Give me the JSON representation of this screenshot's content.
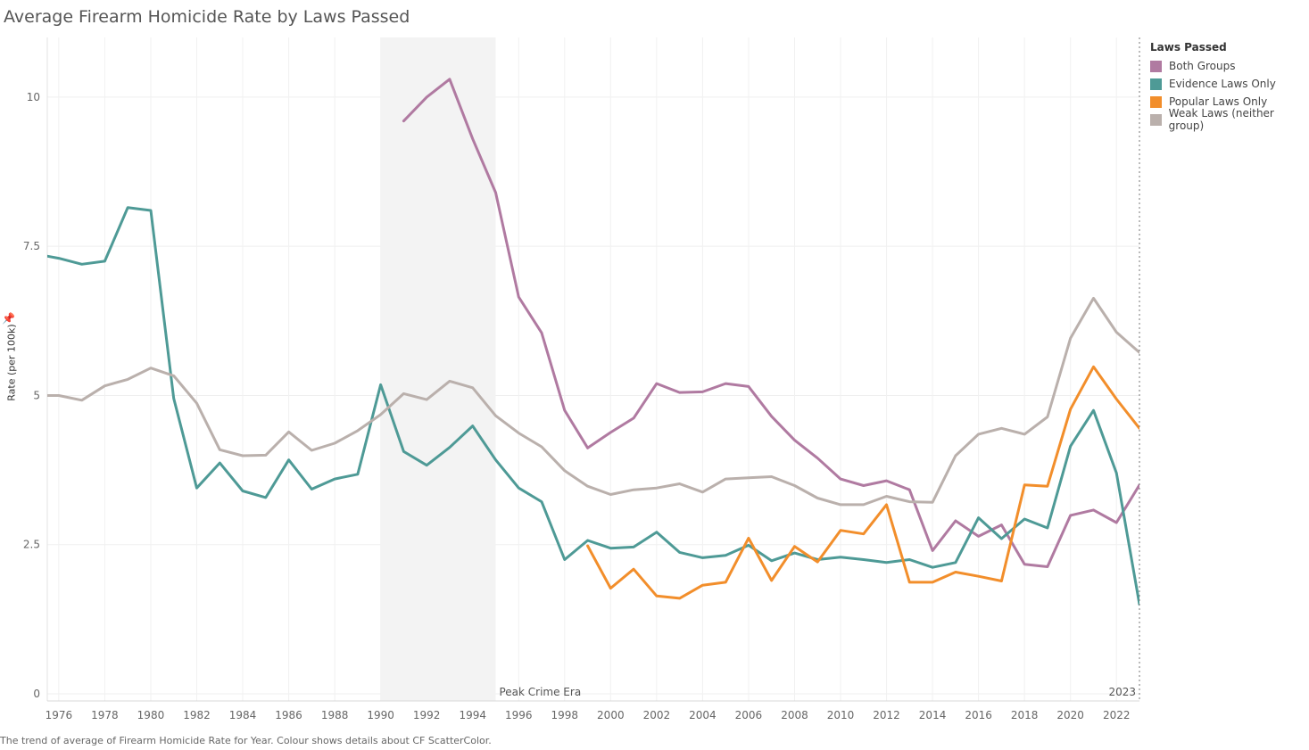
{
  "title": "Average Firearm Homicide Rate by Laws Passed",
  "caption": "The trend of average of Firearm Homicide Rate for Year.  Colour shows details about CF ScatterColor.",
  "chart_data": {
    "type": "line",
    "title": "Average Firearm Homicide Rate by Laws Passed",
    "ylabel": "Rate (per 100k)",
    "xlabel": "",
    "xlim": [
      1975.5,
      2023
    ],
    "ylim": [
      0,
      11
    ],
    "y_ticks": [
      0,
      2.5,
      5,
      7.5,
      10
    ],
    "y_tick_labels": [
      "0",
      "2.5",
      "5",
      "7.5",
      "10"
    ],
    "x_ticks": [
      1976,
      1978,
      1980,
      1982,
      1984,
      1986,
      1988,
      1990,
      1992,
      1994,
      1996,
      1998,
      2000,
      2002,
      2004,
      2006,
      2008,
      2010,
      2012,
      2014,
      2016,
      2018,
      2020,
      2022
    ],
    "grid": true,
    "annotations": [
      {
        "type": "band",
        "x_start": 1990,
        "x_end": 1995,
        "label": "Peak Crime Era"
      },
      {
        "type": "refline",
        "x": 2023,
        "label": "2023"
      }
    ],
    "legend": {
      "title": "Laws Passed",
      "position": "right"
    },
    "series": [
      {
        "name": "Both Groups",
        "color": "#b07aa1",
        "x": [
          1991,
          1992,
          1993,
          1994,
          1995,
          1996,
          1997,
          1998,
          1999,
          2000,
          2001,
          2002,
          2003,
          2004,
          2005,
          2006,
          2007,
          2008,
          2009,
          2010,
          2011,
          2012,
          2013,
          2014,
          2015,
          2016,
          2017,
          2018,
          2019,
          2020,
          2021,
          2022,
          2023
        ],
        "values": [
          9.6,
          10.0,
          10.3,
          9.3,
          8.4,
          6.65,
          6.05,
          4.75,
          4.12,
          4.38,
          4.62,
          5.2,
          5.05,
          5.06,
          5.2,
          5.15,
          4.65,
          4.25,
          3.95,
          3.6,
          3.49,
          3.57,
          3.42,
          2.4,
          2.9,
          2.64,
          2.83,
          2.17,
          2.13,
          2.99,
          3.08,
          2.87,
          3.5
        ]
      },
      {
        "name": "Evidence Laws Only",
        "color": "#4e9a96",
        "x": [
          1975,
          1976,
          1977,
          1978,
          1979,
          1980,
          1981,
          1982,
          1983,
          1984,
          1985,
          1986,
          1987,
          1988,
          1989,
          1990,
          1991,
          1992,
          1993,
          1994,
          1995,
          1996,
          1997,
          1998,
          1999,
          2000,
          2001,
          2002,
          2003,
          2004,
          2005,
          2006,
          2007,
          2008,
          2009,
          2010,
          2011,
          2012,
          2013,
          2014,
          2015,
          2016,
          2017,
          2018,
          2019,
          2020,
          2021,
          2022,
          2023
        ],
        "values": [
          7.37,
          7.3,
          7.2,
          7.25,
          8.15,
          8.1,
          4.95,
          3.45,
          3.87,
          3.4,
          3.29,
          3.92,
          3.43,
          3.6,
          3.68,
          5.18,
          4.06,
          3.83,
          4.13,
          4.49,
          3.92,
          3.45,
          3.22,
          2.25,
          2.57,
          2.44,
          2.46,
          2.71,
          2.37,
          2.28,
          2.32,
          2.49,
          2.23,
          2.36,
          2.25,
          2.29,
          2.25,
          2.2,
          2.25,
          2.12,
          2.2,
          2.95,
          2.6,
          2.93,
          2.78,
          4.15,
          4.75,
          3.7,
          1.5
        ]
      },
      {
        "name": "Popular Laws Only",
        "color": "#f28e2b",
        "x": [
          1999,
          2000,
          2001,
          2002,
          2003,
          2004,
          2005,
          2006,
          2007,
          2008,
          2009,
          2010,
          2011,
          2012,
          2013,
          2014,
          2015,
          2016,
          2017,
          2018,
          2019,
          2020,
          2021,
          2022,
          2023
        ],
        "values": [
          2.48,
          1.77,
          2.09,
          1.64,
          1.6,
          1.82,
          1.87,
          2.61,
          1.9,
          2.47,
          2.21,
          2.74,
          2.68,
          3.17,
          1.87,
          1.87,
          2.04,
          1.97,
          1.89,
          3.5,
          3.48,
          4.77,
          5.48,
          4.94,
          4.45
        ]
      },
      {
        "name": "Weak Laws (neither group)",
        "color": "#bab0ac",
        "x": [
          1975,
          1976,
          1977,
          1978,
          1979,
          1980,
          1981,
          1982,
          1983,
          1984,
          1985,
          1986,
          1987,
          1988,
          1989,
          1990,
          1991,
          1992,
          1993,
          1994,
          1995,
          1996,
          1997,
          1998,
          1999,
          2000,
          2001,
          2002,
          2003,
          2004,
          2005,
          2006,
          2007,
          2008,
          2009,
          2010,
          2011,
          2012,
          2013,
          2014,
          2015,
          2016,
          2017,
          2018,
          2019,
          2020,
          2021,
          2022,
          2023
        ],
        "values": [
          5.0,
          5.0,
          4.92,
          5.16,
          5.27,
          5.46,
          5.33,
          4.87,
          4.09,
          3.99,
          4.0,
          4.39,
          4.08,
          4.2,
          4.41,
          4.68,
          5.03,
          4.93,
          5.24,
          5.13,
          4.66,
          4.37,
          4.14,
          3.74,
          3.48,
          3.34,
          3.42,
          3.45,
          3.52,
          3.38,
          3.6,
          3.62,
          3.64,
          3.49,
          3.28,
          3.17,
          3.17,
          3.31,
          3.22,
          3.21,
          3.99,
          4.35,
          4.45,
          4.35,
          4.64,
          5.96,
          6.63,
          6.06,
          5.72
        ]
      }
    ]
  }
}
